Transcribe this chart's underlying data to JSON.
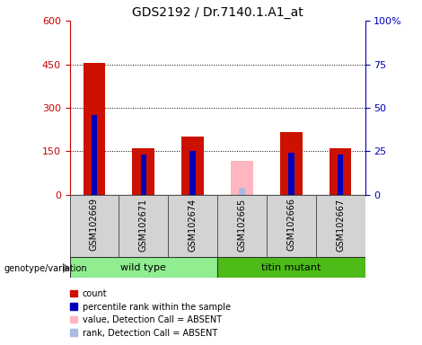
{
  "title": "GDS2192 / Dr.7140.1.A1_at",
  "samples": [
    "GSM102669",
    "GSM102671",
    "GSM102674",
    "GSM102665",
    "GSM102666",
    "GSM102667"
  ],
  "group_labels": [
    "wild type",
    "titin mutant"
  ],
  "group_colors": [
    "#90EE90",
    "#4CBB17"
  ],
  "bar_color_present": "#CC1100",
  "bar_color_absent": "#FFB6C1",
  "rank_color_present": "#0000BB",
  "rank_color_absent": "#AABBDD",
  "count_values": [
    455,
    162,
    200,
    null,
    215,
    160
  ],
  "rank_values_pct": [
    46,
    23,
    25,
    null,
    24,
    23
  ],
  "absent_count_values": [
    null,
    null,
    null,
    118,
    null,
    null
  ],
  "absent_rank_values_pct": [
    null,
    null,
    null,
    4,
    null,
    null
  ],
  "ylim_left": [
    0,
    600
  ],
  "ylim_right": [
    0,
    100
  ],
  "yticks_left": [
    0,
    150,
    300,
    450,
    600
  ],
  "yticks_right": [
    0,
    25,
    50,
    75,
    100
  ],
  "ytick_right_labels": [
    "0",
    "25",
    "50",
    "75",
    "100%"
  ],
  "left_axis_color": "#CC0000",
  "right_axis_color": "#0000BB",
  "bar_width": 0.45,
  "rank_bar_width": 0.12,
  "legend_items": [
    {
      "label": "count",
      "color": "#CC1100"
    },
    {
      "label": "percentile rank within the sample",
      "color": "#0000BB"
    },
    {
      "label": "value, Detection Call = ABSENT",
      "color": "#FFB6C1"
    },
    {
      "label": "rank, Detection Call = ABSENT",
      "color": "#AABBDD"
    }
  ]
}
